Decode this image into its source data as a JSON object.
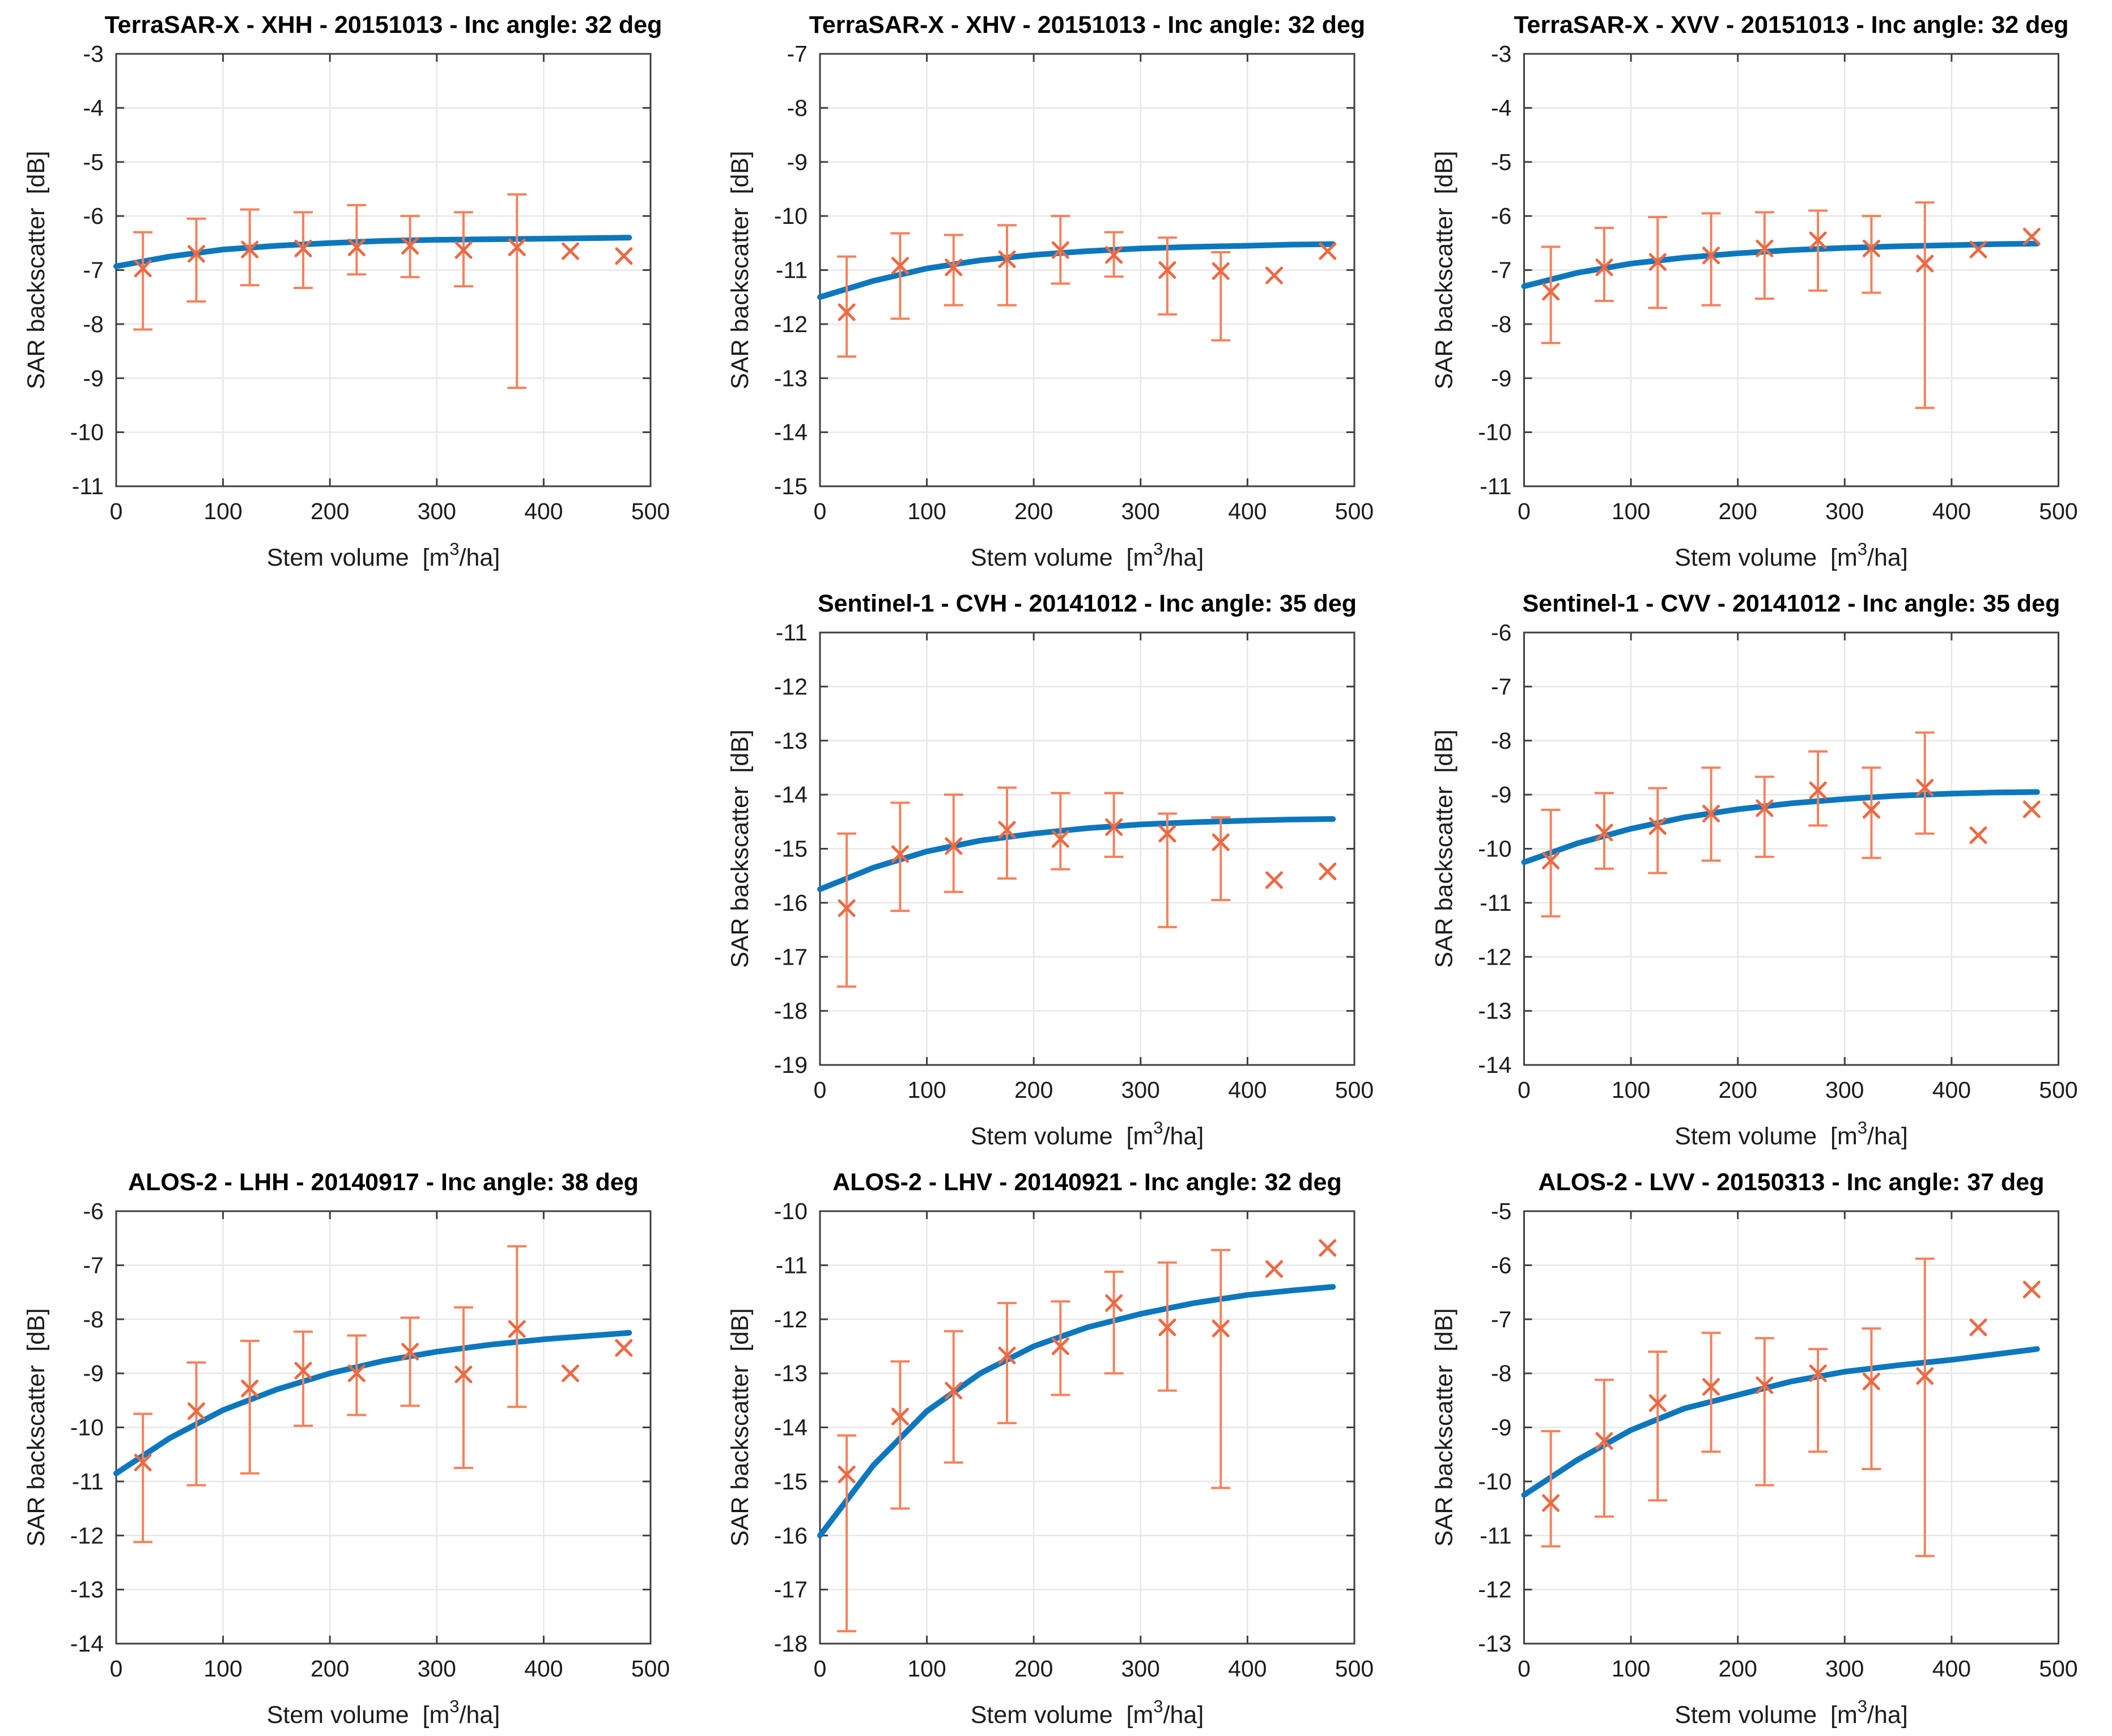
{
  "page": {
    "background": "#ffffff",
    "grid_rows": 3,
    "grid_cols": 3
  },
  "colors": {
    "curve": "#0d77bd",
    "errorbar": "#f3825c",
    "marker": "#ea6a44",
    "grid": "#e7e7e7",
    "axis_box": "#3f3f3f",
    "tick_text": "#1c1c1c",
    "title_text": "#000000"
  },
  "axis": {
    "xlabel_pre": "Stem volume  [m",
    "xlabel_sup": "3",
    "xlabel_post": "/ha]",
    "ylabel": "SAR backscatter  [dB]",
    "x_ticks": [
      0,
      100,
      200,
      300,
      400,
      500
    ],
    "xlim": [
      0,
      500
    ]
  },
  "chart_data": [
    {
      "type": "scatter",
      "row": 0,
      "col": 0,
      "title": "TerraSAR-X - XHH - 20151013 - Inc angle: 32 deg",
      "xlabel": "Stem volume [m3/ha]",
      "ylabel": "SAR backscatter [dB]",
      "xlim": [
        0,
        500
      ],
      "ylim": [
        -11,
        -3
      ],
      "y_tick_step": 1,
      "x": [
        25,
        75,
        125,
        175,
        225,
        275,
        325,
        375,
        425,
        475
      ],
      "y": [
        -6.97,
        -6.7,
        -6.62,
        -6.6,
        -6.58,
        -6.55,
        -6.63,
        -6.58,
        -6.65,
        -6.74
      ],
      "err_upper": [
        -6.3,
        -6.05,
        -5.88,
        -5.93,
        -5.8,
        -6.0,
        -5.93,
        -5.6,
        null,
        null
      ],
      "err_lower": [
        -8.1,
        -7.58,
        -7.28,
        -7.33,
        -7.08,
        -7.13,
        -7.3,
        -9.18,
        null,
        null
      ],
      "curve_x": [
        0,
        50,
        100,
        150,
        200,
        250,
        300,
        350,
        400,
        440,
        480
      ],
      "curve_y": [
        -6.93,
        -6.75,
        -6.62,
        -6.55,
        -6.5,
        -6.46,
        -6.44,
        -6.43,
        -6.42,
        -6.41,
        -6.4
      ]
    },
    {
      "type": "scatter",
      "row": 0,
      "col": 1,
      "title": "TerraSAR-X - XHV - 20151013 - Inc angle: 32 deg",
      "xlabel": "Stem volume [m3/ha]",
      "ylabel": "SAR backscatter [dB]",
      "xlim": [
        0,
        500
      ],
      "ylim": [
        -15,
        -7
      ],
      "y_tick_step": 1,
      "x": [
        25,
        75,
        125,
        175,
        225,
        275,
        325,
        375,
        425,
        475
      ],
      "y": [
        -11.78,
        -10.92,
        -10.95,
        -10.8,
        -10.63,
        -10.72,
        -11.0,
        -11.02,
        -11.1,
        -10.65
      ],
      "err_upper": [
        -10.75,
        -10.32,
        -10.35,
        -10.17,
        -10.0,
        -10.3,
        -10.4,
        -10.67,
        null,
        null
      ],
      "err_lower": [
        -12.6,
        -11.9,
        -11.65,
        -11.65,
        -11.25,
        -11.12,
        -11.82,
        -12.3,
        null,
        null
      ],
      "curve_x": [
        0,
        50,
        100,
        150,
        200,
        250,
        300,
        350,
        400,
        440,
        480
      ],
      "curve_y": [
        -11.5,
        -11.2,
        -10.97,
        -10.82,
        -10.72,
        -10.65,
        -10.6,
        -10.57,
        -10.55,
        -10.53,
        -10.52
      ]
    },
    {
      "type": "scatter",
      "row": 0,
      "col": 2,
      "title": "TerraSAR-X - XVV - 20151013 - Inc angle: 32 deg",
      "xlabel": "Stem volume [m3/ha]",
      "ylabel": "SAR backscatter [dB]",
      "xlim": [
        0,
        500
      ],
      "ylim": [
        -11,
        -3
      ],
      "y_tick_step": 1,
      "x": [
        25,
        75,
        125,
        175,
        225,
        275,
        325,
        375,
        425,
        475
      ],
      "y": [
        -7.4,
        -6.95,
        -6.85,
        -6.73,
        -6.6,
        -6.45,
        -6.6,
        -6.88,
        -6.62,
        -6.38
      ],
      "err_upper": [
        -6.57,
        -6.22,
        -6.02,
        -5.95,
        -5.93,
        -5.9,
        -6.0,
        -5.75,
        null,
        null
      ],
      "err_lower": [
        -8.35,
        -7.57,
        -7.7,
        -7.65,
        -7.53,
        -7.38,
        -7.42,
        -9.55,
        null,
        null
      ],
      "curve_x": [
        0,
        50,
        100,
        150,
        200,
        250,
        300,
        350,
        400,
        440,
        480
      ],
      "curve_y": [
        -7.3,
        -7.05,
        -6.88,
        -6.77,
        -6.69,
        -6.63,
        -6.59,
        -6.56,
        -6.54,
        -6.52,
        -6.51
      ]
    },
    {
      "type": "scatter",
      "row": 1,
      "col": 1,
      "title": "Sentinel-1 - CVH - 20141012 - Inc angle: 35 deg",
      "xlabel": "Stem volume [m3/ha]",
      "ylabel": "SAR backscatter [dB]",
      "xlim": [
        0,
        500
      ],
      "ylim": [
        -19,
        -11
      ],
      "y_tick_step": 1,
      "x": [
        25,
        75,
        125,
        175,
        225,
        275,
        325,
        375,
        425,
        475
      ],
      "y": [
        -16.1,
        -15.1,
        -14.95,
        -14.65,
        -14.82,
        -14.6,
        -14.72,
        -14.88,
        -15.58,
        -15.42
      ],
      "err_upper": [
        -14.72,
        -14.15,
        -14.0,
        -13.87,
        -13.97,
        -13.97,
        -14.35,
        -14.42,
        null,
        null
      ],
      "err_lower": [
        -17.55,
        -16.15,
        -15.8,
        -15.55,
        -15.38,
        -15.15,
        -16.45,
        -15.95,
        null,
        null
      ],
      "curve_x": [
        0,
        50,
        100,
        150,
        200,
        250,
        300,
        350,
        400,
        440,
        480
      ],
      "curve_y": [
        -15.75,
        -15.35,
        -15.05,
        -14.85,
        -14.72,
        -14.62,
        -14.55,
        -14.51,
        -14.48,
        -14.46,
        -14.45
      ]
    },
    {
      "type": "scatter",
      "row": 1,
      "col": 2,
      "title": "Sentinel-1 - CVV - 20141012 - Inc angle: 35 deg",
      "xlabel": "Stem volume [m3/ha]",
      "ylabel": "SAR backscatter [dB]",
      "xlim": [
        0,
        500
      ],
      "ylim": [
        -14,
        -6
      ],
      "y_tick_step": 1,
      "x": [
        25,
        75,
        125,
        175,
        225,
        275,
        325,
        375,
        425,
        475
      ],
      "y": [
        -10.22,
        -9.7,
        -9.58,
        -9.35,
        -9.25,
        -8.92,
        -9.28,
        -8.87,
        -9.75,
        -9.27
      ],
      "err_upper": [
        -9.28,
        -8.97,
        -8.88,
        -8.5,
        -8.67,
        -8.2,
        -8.5,
        -7.85,
        null,
        null
      ],
      "err_lower": [
        -11.25,
        -10.37,
        -10.45,
        -10.22,
        -10.15,
        -9.57,
        -10.17,
        -9.72,
        null,
        null
      ],
      "curve_x": [
        0,
        50,
        100,
        150,
        200,
        250,
        300,
        350,
        400,
        440,
        480
      ],
      "curve_y": [
        -10.25,
        -9.9,
        -9.63,
        -9.42,
        -9.27,
        -9.16,
        -9.08,
        -9.02,
        -8.98,
        -8.96,
        -8.95
      ]
    },
    {
      "type": "scatter",
      "row": 2,
      "col": 0,
      "title": "ALOS-2 - LHH - 20140917 - Inc angle: 38 deg",
      "xlabel": "Stem volume [m3/ha]",
      "ylabel": "SAR backscatter [dB]",
      "xlim": [
        0,
        500
      ],
      "ylim": [
        -14,
        -6
      ],
      "y_tick_step": 1,
      "x": [
        25,
        75,
        125,
        175,
        225,
        275,
        325,
        375,
        425,
        475
      ],
      "y": [
        -10.65,
        -9.7,
        -9.28,
        -8.95,
        -9.0,
        -8.6,
        -9.02,
        -8.18,
        -9.0,
        -8.53
      ],
      "err_upper": [
        -9.75,
        -8.8,
        -8.4,
        -8.23,
        -8.3,
        -7.97,
        -7.78,
        -6.65,
        null,
        null
      ],
      "err_lower": [
        -12.12,
        -11.07,
        -10.85,
        -9.97,
        -9.77,
        -9.6,
        -10.75,
        -9.62,
        null,
        null
      ],
      "curve_x": [
        0,
        50,
        100,
        150,
        200,
        250,
        300,
        350,
        400,
        440,
        480
      ],
      "curve_y": [
        -10.85,
        -10.2,
        -9.68,
        -9.3,
        -9.0,
        -8.77,
        -8.6,
        -8.47,
        -8.37,
        -8.31,
        -8.25
      ]
    },
    {
      "type": "scatter",
      "row": 2,
      "col": 1,
      "title": "ALOS-2 - LHV - 20140921 - Inc angle: 32 deg",
      "xlabel": "Stem volume [m3/ha]",
      "ylabel": "SAR backscatter [dB]",
      "xlim": [
        0,
        500
      ],
      "ylim": [
        -18,
        -10
      ],
      "y_tick_step": 1,
      "x": [
        25,
        75,
        125,
        175,
        225,
        275,
        325,
        375,
        425,
        475
      ],
      "y": [
        -14.87,
        -13.8,
        -13.32,
        -12.67,
        -12.5,
        -11.7,
        -12.15,
        -12.17,
        -11.07,
        -10.68
      ],
      "err_upper": [
        -14.15,
        -12.78,
        -12.22,
        -11.7,
        -11.67,
        -11.12,
        -10.95,
        -10.72,
        null,
        null
      ],
      "err_lower": [
        -17.77,
        -15.5,
        -14.65,
        -13.92,
        -13.4,
        -13.0,
        -13.32,
        -15.12,
        null,
        null
      ],
      "curve_x": [
        0,
        50,
        100,
        150,
        200,
        250,
        300,
        350,
        400,
        440,
        480
      ],
      "curve_y": [
        -16.0,
        -14.7,
        -13.7,
        -13.0,
        -12.5,
        -12.15,
        -11.9,
        -11.7,
        -11.55,
        -11.47,
        -11.4
      ]
    },
    {
      "type": "scatter",
      "row": 2,
      "col": 2,
      "title": "ALOS-2 - LVV - 20150313 - Inc angle: 37 deg",
      "xlabel": "Stem volume [m3/ha]",
      "ylabel": "SAR backscatter [dB]",
      "xlim": [
        0,
        500
      ],
      "ylim": [
        -13,
        -5
      ],
      "y_tick_step": 1,
      "x": [
        25,
        75,
        125,
        175,
        225,
        275,
        325,
        375,
        425,
        475
      ],
      "y": [
        -10.4,
        -9.25,
        -8.55,
        -8.25,
        -8.22,
        -8.0,
        -8.15,
        -8.05,
        -7.15,
        -6.45
      ],
      "err_upper": [
        -9.07,
        -8.12,
        -7.6,
        -7.25,
        -7.35,
        -7.55,
        -7.17,
        -5.88,
        null,
        null
      ],
      "err_lower": [
        -11.2,
        -10.65,
        -10.35,
        -9.45,
        -10.07,
        -9.45,
        -9.77,
        -11.38,
        null,
        null
      ],
      "curve_x": [
        0,
        50,
        100,
        150,
        200,
        250,
        300,
        350,
        400,
        440,
        480
      ],
      "curve_y": [
        -10.25,
        -9.6,
        -9.05,
        -8.65,
        -8.4,
        -8.15,
        -7.97,
        -7.85,
        -7.75,
        -7.65,
        -7.55
      ]
    }
  ]
}
